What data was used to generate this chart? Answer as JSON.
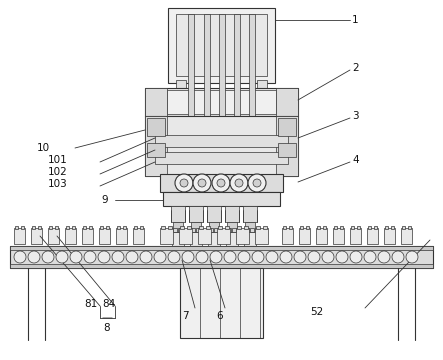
{
  "bg_color": "#ffffff",
  "lc": "#555555",
  "lc_dark": "#333333",
  "fc_light": "#f5f5f5",
  "fc_mid": "#e0e0e0",
  "fc_dark": "#c8c8c8",
  "fc_belt": "#d5d5d5"
}
